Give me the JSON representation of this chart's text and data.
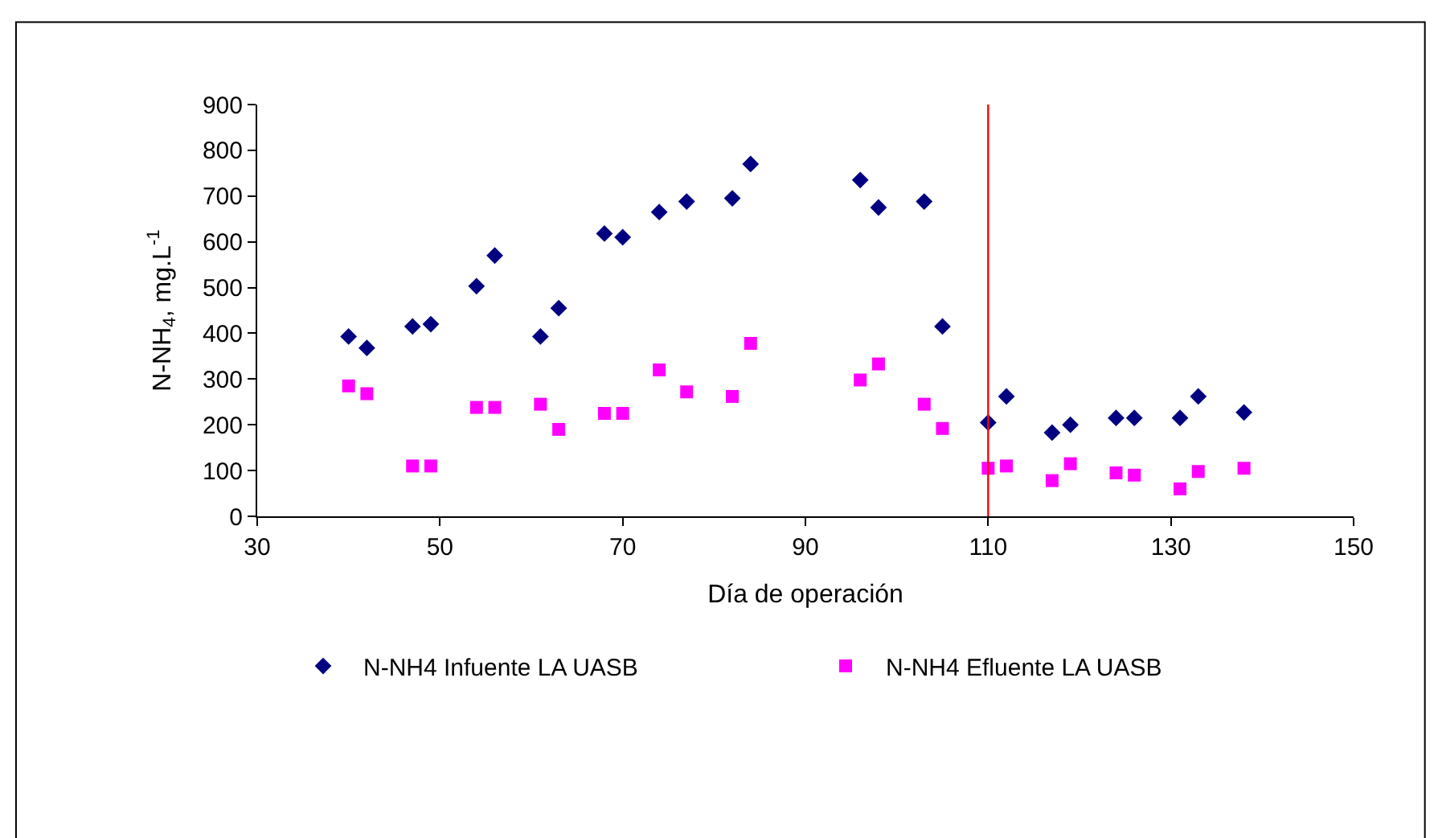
{
  "chart_data": {
    "type": "scatter",
    "xlabel": "Día de operación",
    "ylabel": "N-NH$_{4}$, mg.L$^{-1}$",
    "xlim": [
      30,
      150
    ],
    "xticks": [
      30,
      50,
      70,
      90,
      110,
      130,
      150
    ],
    "ylim": [
      0,
      900
    ],
    "yticks": [
      0,
      100,
      200,
      300,
      400,
      500,
      600,
      700,
      800,
      900
    ],
    "x": [
      40,
      42,
      47,
      49,
      54,
      56,
      61,
      63,
      68,
      70,
      74,
      77,
      82,
      84,
      96,
      98,
      103,
      105,
      110,
      112,
      117,
      119,
      124,
      126,
      131,
      133,
      138
    ],
    "series": [
      {
        "name": "N-NH4 Infuente LA UASB",
        "color": "#000080",
        "marker": "diamond",
        "values": [
          393,
          368,
          415,
          420,
          503,
          570,
          393,
          455,
          618,
          610,
          665,
          688,
          695,
          770,
          735,
          675,
          688,
          415,
          205,
          262,
          183,
          200,
          215,
          215,
          215,
          262,
          227
        ]
      },
      {
        "name": "N-NH4 Efluente LA UASB",
        "color": "#ff00ff",
        "marker": "square",
        "values": [
          285,
          268,
          110,
          110,
          238,
          238,
          245,
          190,
          225,
          225,
          320,
          272,
          262,
          378,
          298,
          333,
          245,
          192,
          105,
          110,
          78,
          115,
          95,
          90,
          60,
          98,
          105
        ]
      }
    ],
    "ref_lines": [
      {
        "axis": "x",
        "value": 110,
        "color": "#ff0000"
      }
    ],
    "legend": "bottom"
  }
}
